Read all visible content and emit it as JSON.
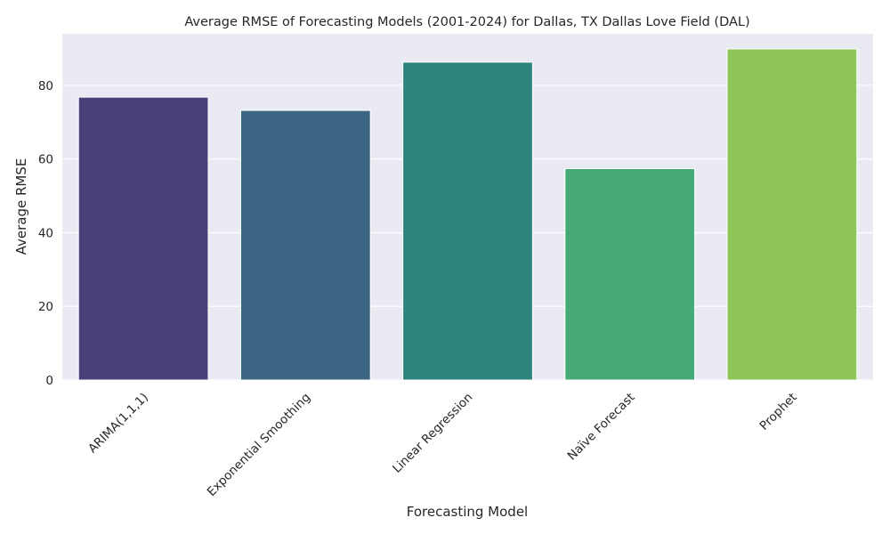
{
  "chart_data": {
    "type": "bar",
    "title": "Average RMSE of Forecasting Models (2001-2024) for Dallas, TX Dallas Love Field (DAL)",
    "xlabel": "Forecasting Model",
    "ylabel": "Average RMSE",
    "categories": [
      "ARIMA(1,1,1)",
      "Exponential Smoothing",
      "Linear Regression",
      "Naïve Forecast",
      "Prophet"
    ],
    "values": [
      76.8,
      73.2,
      86.3,
      57.4,
      89.9
    ],
    "colors": [
      "#4a3f7a",
      "#3c6583",
      "#2e847d",
      "#46a978",
      "#8dc556"
    ],
    "ylim": [
      0,
      94
    ],
    "yticks": [
      0,
      20,
      40,
      60,
      80
    ],
    "ytick_labels": [
      "0",
      "20",
      "40",
      "60",
      "80"
    ],
    "grid": true,
    "background_color": "#eaeaf2",
    "grid_color": "#ffffff"
  }
}
